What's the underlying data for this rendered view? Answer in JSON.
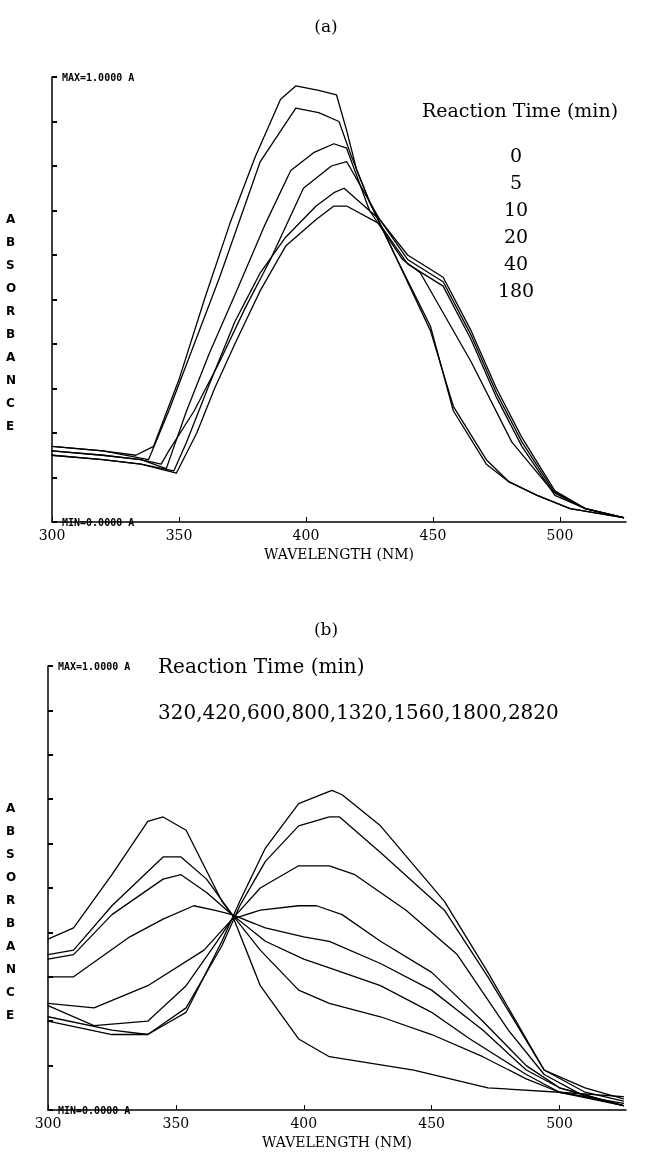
{
  "chart_data": [
    {
      "type": "line",
      "title": "(a)",
      "xlabel": "WAVELENGTH (NM)",
      "ylabel": "ABSORBANCE",
      "marker": "none",
      "grid": false,
      "xlim": [
        300,
        526
      ],
      "xticks": [
        300,
        350,
        400,
        450,
        500
      ],
      "ylim": [
        0,
        1
      ],
      "yticks": [
        {
          "value": 0,
          "label": "MIN=0.0000 A"
        },
        {
          "value": 0.1,
          "label": null
        },
        {
          "value": 0.2,
          "label": null
        },
        {
          "value": 0.3,
          "label": null
        },
        {
          "value": 0.4,
          "label": null
        },
        {
          "value": 0.5,
          "label": null
        },
        {
          "value": 0.6,
          "label": null
        },
        {
          "value": 0.7,
          "label": null
        },
        {
          "value": 0.8,
          "label": null
        },
        {
          "value": 0.9,
          "label": null
        },
        {
          "value": 1,
          "label": "MAX=1.0000 A"
        }
      ],
      "annotations": [
        "Reaction Time (min)",
        "0",
        "5",
        "10",
        "20",
        "40",
        "180"
      ],
      "series": [
        {
          "color": "#000000",
          "x": [
            300,
            320,
            333,
            340,
            350,
            360,
            370,
            380,
            390,
            396,
            405,
            412,
            416,
            420,
            425,
            435,
            449,
            458,
            471,
            480,
            491,
            504,
            525
          ],
          "values": [
            0.17,
            0.16,
            0.15,
            0.17,
            0.32,
            0.5,
            0.67,
            0.82,
            0.95,
            0.98,
            0.97,
            0.96,
            0.88,
            0.79,
            0.72,
            0.6,
            0.44,
            0.25,
            0.13,
            0.09,
            0.06,
            0.03,
            0.01
          ]
        },
        {
          "color": "#000000",
          "x": [
            300,
            320,
            338,
            346,
            356,
            366,
            382,
            396,
            405,
            413,
            418,
            425,
            435,
            449,
            458,
            471,
            480,
            491,
            504,
            525
          ],
          "values": [
            0.17,
            0.16,
            0.14,
            0.25,
            0.4,
            0.55,
            0.81,
            0.93,
            0.92,
            0.9,
            0.82,
            0.72,
            0.6,
            0.43,
            0.26,
            0.14,
            0.09,
            0.06,
            0.03,
            0.01
          ]
        },
        {
          "color": "#000000",
          "x": [
            300,
            320,
            335,
            345,
            353,
            362,
            372,
            384,
            394,
            403,
            411,
            416,
            425,
            438,
            445,
            455,
            465,
            481,
            497,
            510,
            525
          ],
          "values": [
            0.16,
            0.15,
            0.14,
            0.12,
            0.25,
            0.38,
            0.51,
            0.67,
            0.79,
            0.83,
            0.85,
            0.84,
            0.7,
            0.59,
            0.56,
            0.46,
            0.36,
            0.18,
            0.07,
            0.03,
            0.01
          ]
        },
        {
          "color": "#000000",
          "x": [
            300,
            320,
            335,
            343,
            346,
            356,
            366,
            376,
            386,
            399,
            410,
            416,
            429,
            440,
            454,
            465,
            475,
            485,
            498,
            510,
            525
          ],
          "values": [
            0.16,
            0.15,
            0.14,
            0.13,
            0.16,
            0.25,
            0.36,
            0.48,
            0.59,
            0.75,
            0.8,
            0.81,
            0.68,
            0.6,
            0.55,
            0.43,
            0.3,
            0.19,
            0.07,
            0.03,
            0.01
          ]
        },
        {
          "color": "#000000",
          "x": [
            300,
            320,
            335,
            348,
            353,
            362,
            372,
            382,
            392,
            404,
            411,
            415,
            429,
            440,
            454,
            465,
            475,
            485,
            498,
            510,
            525
          ],
          "values": [
            0.15,
            0.14,
            0.13,
            0.115,
            0.18,
            0.31,
            0.45,
            0.56,
            0.64,
            0.71,
            0.74,
            0.75,
            0.68,
            0.59,
            0.54,
            0.42,
            0.29,
            0.18,
            0.065,
            0.03,
            0.01
          ]
        },
        {
          "color": "#000000",
          "x": [
            300,
            320,
            335,
            349,
            357,
            364,
            372,
            382,
            392,
            404,
            411,
            416,
            429,
            440,
            454,
            465,
            475,
            485,
            498,
            510,
            525
          ],
          "values": [
            0.15,
            0.14,
            0.13,
            0.11,
            0.2,
            0.3,
            0.4,
            0.52,
            0.62,
            0.68,
            0.71,
            0.71,
            0.67,
            0.58,
            0.53,
            0.41,
            0.28,
            0.17,
            0.06,
            0.03,
            0.01
          ]
        }
      ]
    },
    {
      "type": "line",
      "title": "(b)",
      "xlabel": "WAVELENGTH (NM)",
      "ylabel": "ABSORBANCE",
      "marker": "none",
      "grid": false,
      "xlim": [
        300,
        526
      ],
      "xticks": [
        300,
        350,
        400,
        450,
        500
      ],
      "ylim": [
        0,
        1
      ],
      "yticks": [
        {
          "value": 0,
          "label": "MIN=0.0000 A"
        },
        {
          "value": 0.1,
          "label": null
        },
        {
          "value": 0.2,
          "label": null
        },
        {
          "value": 0.3,
          "label": null
        },
        {
          "value": 0.4,
          "label": null
        },
        {
          "value": 0.5,
          "label": null
        },
        {
          "value": 0.6,
          "label": null
        },
        {
          "value": 0.7,
          "label": null
        },
        {
          "value": 0.8,
          "label": null
        },
        {
          "value": 0.9,
          "label": null
        },
        {
          "value": 1,
          "label": "MAX=1.0000 A"
        }
      ],
      "annotations": [
        "Reaction Time (min)",
        "320,420,600,800,1320,1560,1800,2820"
      ],
      "series": [
        {
          "color": "#000000",
          "x": [
            300,
            310,
            325,
            339,
            345,
            354,
            368,
            372,
            383,
            398,
            410,
            443,
            472,
            500,
            525
          ],
          "values": [
            0.385,
            0.41,
            0.53,
            0.65,
            0.66,
            0.63,
            0.47,
            0.44,
            0.28,
            0.16,
            0.12,
            0.09,
            0.05,
            0.04,
            0.03
          ]
        },
        {
          "color": "#000000",
          "x": [
            300,
            310,
            325,
            345,
            352,
            362,
            372,
            383,
            398,
            410,
            430,
            450,
            470,
            487,
            500,
            525
          ],
          "values": [
            0.35,
            0.36,
            0.46,
            0.57,
            0.57,
            0.52,
            0.44,
            0.36,
            0.27,
            0.24,
            0.21,
            0.17,
            0.12,
            0.07,
            0.04,
            0.015
          ]
        },
        {
          "color": "#000000",
          "x": [
            300,
            310,
            325,
            345,
            352,
            362,
            372,
            385,
            400,
            410,
            430,
            450,
            465,
            487,
            500,
            525
          ],
          "values": [
            0.34,
            0.35,
            0.44,
            0.52,
            0.53,
            0.49,
            0.44,
            0.38,
            0.34,
            0.32,
            0.28,
            0.22,
            0.16,
            0.08,
            0.04,
            0.01
          ]
        },
        {
          "color": "#000000",
          "x": [
            300,
            310,
            332,
            345,
            357,
            365,
            372,
            385,
            400,
            410,
            430,
            450,
            470,
            487,
            500,
            525
          ],
          "values": [
            0.3,
            0.3,
            0.39,
            0.43,
            0.46,
            0.45,
            0.44,
            0.41,
            0.39,
            0.38,
            0.33,
            0.27,
            0.18,
            0.09,
            0.05,
            0.01
          ]
        },
        {
          "color": "#000000",
          "x": [
            300,
            318,
            339,
            361,
            372,
            383,
            398,
            405,
            415,
            430,
            450,
            470,
            487,
            500,
            525
          ],
          "values": [
            0.24,
            0.23,
            0.28,
            0.36,
            0.43,
            0.45,
            0.46,
            0.46,
            0.44,
            0.38,
            0.31,
            0.2,
            0.1,
            0.05,
            0.01
          ]
        },
        {
          "color": "#000000",
          "x": [
            300,
            318,
            339,
            354,
            365,
            372,
            383,
            398,
            410,
            420,
            440,
            460,
            480,
            494,
            510,
            525
          ],
          "values": [
            0.235,
            0.19,
            0.2,
            0.28,
            0.37,
            0.43,
            0.5,
            0.55,
            0.55,
            0.53,
            0.45,
            0.35,
            0.18,
            0.08,
            0.03,
            0.01
          ]
        },
        {
          "color": "#000000",
          "x": [
            300,
            325,
            339,
            354,
            368,
            375,
            385,
            398,
            410,
            414,
            430,
            455,
            472,
            494,
            510,
            525
          ],
          "values": [
            0.21,
            0.18,
            0.17,
            0.23,
            0.37,
            0.46,
            0.56,
            0.64,
            0.66,
            0.66,
            0.58,
            0.45,
            0.3,
            0.09,
            0.04,
            0.02
          ]
        },
        {
          "color": "#000000",
          "x": [
            300,
            325,
            339,
            354,
            368,
            375,
            385,
            398,
            411,
            415,
            430,
            455,
            472,
            494,
            510,
            525
          ],
          "values": [
            0.2,
            0.17,
            0.17,
            0.22,
            0.38,
            0.47,
            0.59,
            0.69,
            0.72,
            0.71,
            0.64,
            0.47,
            0.31,
            0.09,
            0.05,
            0.025
          ]
        }
      ]
    }
  ]
}
